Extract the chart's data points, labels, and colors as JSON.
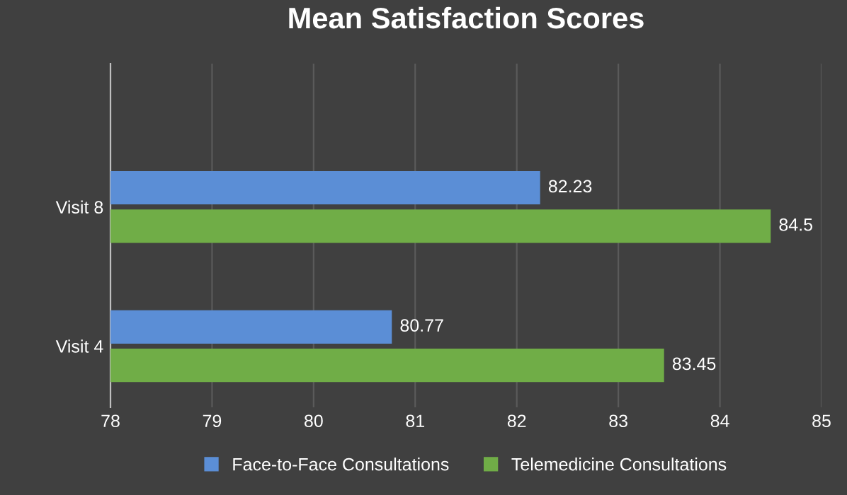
{
  "chart_data": {
    "type": "bar",
    "orientation": "horizontal",
    "title": "Mean Satisfaction Scores",
    "categories": [
      "Visit 8",
      "Visit 4"
    ],
    "series": [
      {
        "name": "Face-to-Face Consultations",
        "color": "#5b8ed6",
        "values": [
          82.23,
          80.77
        ]
      },
      {
        "name": "Telemedicine Consultations",
        "color": "#70ad47",
        "values": [
          84.5,
          83.45
        ]
      }
    ],
    "xlim": [
      78,
      85
    ],
    "xticks": [
      78,
      79,
      80,
      81,
      82,
      83,
      84,
      85
    ],
    "grid": "x",
    "legend": "bottom",
    "data_labels": true
  }
}
